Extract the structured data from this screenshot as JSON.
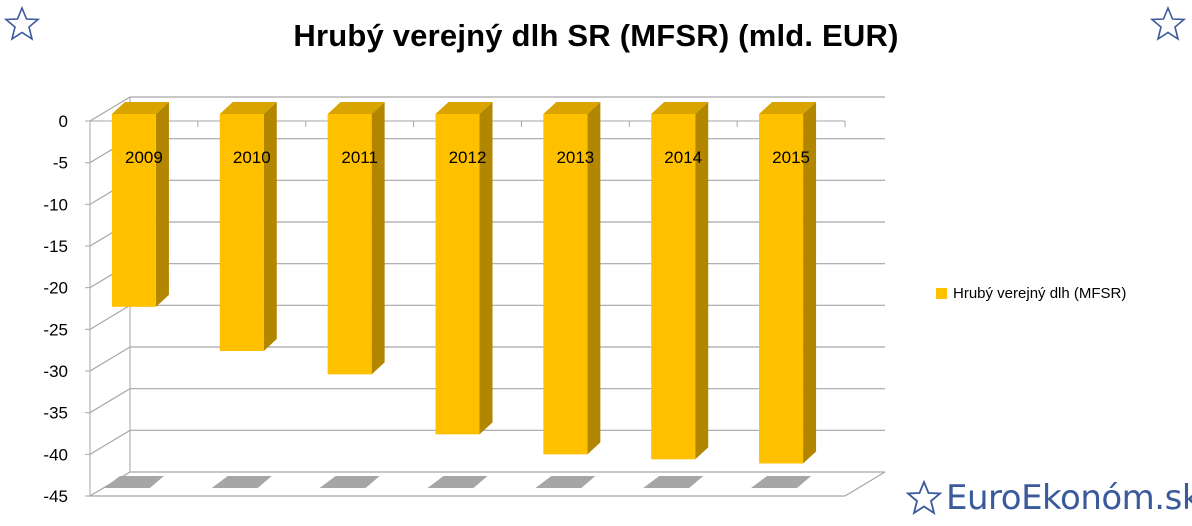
{
  "chart_data": {
    "type": "bar",
    "title": "Hrubý verejný dlh SR (MFSR) (mld. EUR)",
    "categories": [
      "2009",
      "2010",
      "2011",
      "2012",
      "2013",
      "2014",
      "2015"
    ],
    "series": [
      {
        "name": "Hrubý verejný dlh (MFSR)",
        "values": [
          -22.3,
          -27.6,
          -30.4,
          -37.6,
          -40.0,
          -40.6,
          -41.1
        ]
      }
    ],
    "yticks": [
      "0",
      "-5",
      "-10",
      "-15",
      "-20",
      "-25",
      "-30",
      "-35",
      "-40",
      "-45"
    ],
    "ylim": [
      -45,
      0
    ],
    "grid": true,
    "legend_position": "right",
    "style": "3d-column"
  },
  "colors": {
    "bar_front": "#FFC000",
    "bar_side": "#B38600",
    "bar_top": "#D9A300",
    "shadow": "#A6A6A6",
    "grid": "#A6A6A6",
    "brand": "#3A5A9C"
  },
  "brand": {
    "text": "EuroEkonóm.sk",
    "icon": "star-outline-icon"
  },
  "decorations": {
    "top_left_icon": "star-outline-icon",
    "top_right_icon": "star-outline-icon"
  }
}
